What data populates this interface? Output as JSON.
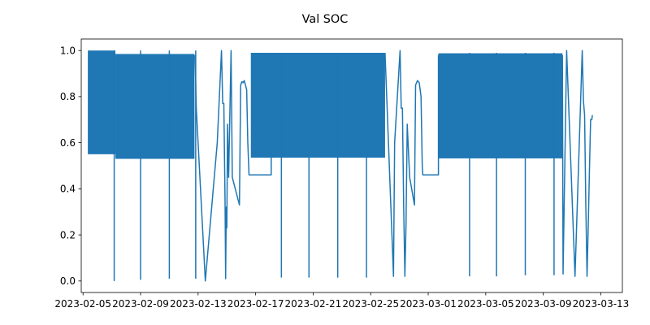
{
  "chart_data": {
    "type": "line",
    "title": "Val SOC",
    "xlabel": "",
    "ylabel": "",
    "line_color": "#1f77b4",
    "grid": false,
    "ylim": [
      -0.05,
      1.05
    ],
    "xlim": [
      "2023-02-04T21:00",
      "2023-03-14T12:00"
    ],
    "yticks": [
      0.0,
      0.2,
      0.4,
      0.6,
      0.8,
      1.0
    ],
    "ytick_labels": [
      "0.0",
      "0.2",
      "0.4",
      "0.6",
      "0.8",
      "1.0"
    ],
    "xticks": [
      "2023-02-05",
      "2023-02-09",
      "2023-02-13",
      "2023-02-17",
      "2023-02-21",
      "2023-02-25",
      "2023-03-01",
      "2023-03-05",
      "2023-03-09",
      "2023-03-13"
    ],
    "bands": [
      {
        "x_start": "2023-02-05T08:00",
        "x_end": "2023-02-07T06:00",
        "y_low": 0.55,
        "y_high": 1.0
      },
      {
        "x_start": "2023-02-07T06:00",
        "x_end": "2023-02-12T18:00",
        "y_low": 0.53,
        "y_high": 0.985
      },
      {
        "x_start": "2023-02-16T16:00",
        "x_end": "2023-02-26T00:00",
        "y_low": 0.535,
        "y_high": 0.99
      },
      {
        "x_start": "2023-03-01T17:00",
        "x_end": "2023-03-10T08:00",
        "y_low": 0.532,
        "y_high": 0.988
      }
    ],
    "spikes": [
      {
        "x": "2023-02-07T04:00",
        "min": 0.0,
        "max": 1.0
      },
      {
        "x": "2023-02-09T00:00",
        "min": 0.005,
        "max": 1.0
      },
      {
        "x": "2023-02-11T00:00",
        "min": 0.01,
        "max": 1.0
      },
      {
        "x": "2023-02-12T20:00",
        "min": 0.01,
        "max": 1.0
      },
      {
        "x": "2023-02-18T19:00",
        "min": 0.015,
        "max": 0.99
      },
      {
        "x": "2023-02-20T17:00",
        "min": 0.015,
        "max": 0.99
      },
      {
        "x": "2023-02-22T17:00",
        "min": 0.015,
        "max": 0.99
      },
      {
        "x": "2023-02-24T17:00",
        "min": 0.015,
        "max": 0.99
      },
      {
        "x": "2023-03-03T21:00",
        "min": 0.02,
        "max": 0.99
      },
      {
        "x": "2023-03-05T18:00",
        "min": 0.02,
        "max": 0.99
      },
      {
        "x": "2023-03-07T18:00",
        "min": 0.025,
        "max": 0.99
      },
      {
        "x": "2023-03-09T18:00",
        "min": 0.025,
        "max": 0.99
      }
    ],
    "series": [
      {
        "points": [
          [
            "2023-02-12T19:00",
            0.98
          ],
          [
            "2023-02-12T21:00",
            0.75
          ],
          [
            "2023-02-13T12:00",
            0.0
          ],
          [
            "2023-02-14T08:00",
            0.6
          ],
          [
            "2023-02-14T15:00",
            1.0
          ],
          [
            "2023-02-14T17:00",
            0.77
          ],
          [
            "2023-02-14T19:00",
            0.77
          ],
          [
            "2023-02-14T21:00",
            0.34
          ],
          [
            "2023-02-14T22:00",
            0.01
          ],
          [
            "2023-02-14T23:00",
            0.32
          ],
          [
            "2023-02-15T00:00",
            0.23
          ],
          [
            "2023-02-15T01:00",
            0.68
          ],
          [
            "2023-02-15T03:00",
            0.45
          ],
          [
            "2023-02-15T07:00",
            1.0
          ],
          [
            "2023-02-15T09:00",
            0.45
          ],
          [
            "2023-02-15T19:00",
            0.35
          ],
          [
            "2023-02-15T21:00",
            0.33
          ],
          [
            "2023-02-15T23:00",
            0.85
          ],
          [
            "2023-02-16T01:00",
            0.865
          ],
          [
            "2023-02-16T03:00",
            0.86
          ],
          [
            "2023-02-16T05:00",
            0.87
          ],
          [
            "2023-02-16T07:00",
            0.85
          ],
          [
            "2023-02-16T09:00",
            0.83
          ],
          [
            "2023-02-16T11:00",
            0.6
          ],
          [
            "2023-02-16T13:00",
            0.46
          ],
          [
            "2023-02-17T12:00",
            0.46
          ],
          [
            "2023-02-18T02:00",
            0.46
          ],
          [
            "2023-02-18T02:00",
            0.98
          ]
        ]
      },
      {
        "points": [
          [
            "2023-02-26T00:00",
            0.99
          ],
          [
            "2023-02-26T14:00",
            0.02
          ],
          [
            "2023-02-26T16:00",
            0.6
          ],
          [
            "2023-02-27T01:00",
            1.0
          ],
          [
            "2023-02-27T03:00",
            0.75
          ],
          [
            "2023-02-27T05:00",
            0.75
          ],
          [
            "2023-02-27T07:00",
            0.33
          ],
          [
            "2023-02-27T09:00",
            0.02
          ],
          [
            "2023-02-27T11:00",
            0.24
          ],
          [
            "2023-02-27T13:00",
            0.68
          ],
          [
            "2023-02-27T17:00",
            0.45
          ],
          [
            "2023-02-28T01:00",
            0.33
          ],
          [
            "2023-02-28T03:00",
            0.85
          ],
          [
            "2023-02-28T06:00",
            0.87
          ],
          [
            "2023-02-28T09:00",
            0.86
          ],
          [
            "2023-02-28T12:00",
            0.8
          ],
          [
            "2023-02-28T14:00",
            0.5
          ],
          [
            "2023-02-28T15:00",
            0.46
          ],
          [
            "2023-03-01T17:00",
            0.46
          ],
          [
            "2023-03-01T17:00",
            0.98
          ]
        ]
      },
      {
        "points": [
          [
            "2023-03-10T08:00",
            0.98
          ],
          [
            "2023-03-10T09:00",
            0.03
          ],
          [
            "2023-03-10T15:00",
            1.0
          ],
          [
            "2023-03-11T05:00",
            0.02
          ],
          [
            "2023-03-11T17:00",
            1.0
          ],
          [
            "2023-03-11T19:00",
            0.78
          ],
          [
            "2023-03-11T21:00",
            0.72
          ],
          [
            "2023-03-11T23:00",
            0.33
          ],
          [
            "2023-03-12T01:00",
            0.02
          ],
          [
            "2023-03-12T03:00",
            0.24
          ],
          [
            "2023-03-12T05:00",
            0.47
          ],
          [
            "2023-03-12T07:00",
            0.7
          ],
          [
            "2023-03-12T09:00",
            0.7
          ],
          [
            "2023-03-12T10:00",
            0.72
          ]
        ]
      }
    ]
  }
}
